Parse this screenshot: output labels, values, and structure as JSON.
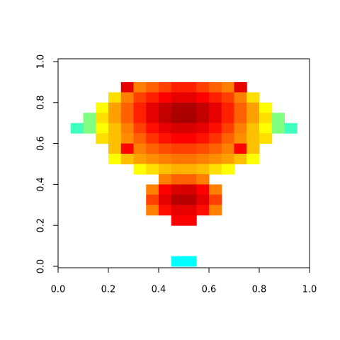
{
  "chart_data": {
    "type": "heatmap",
    "colors": [
      "#0000ff",
      "#00ffff",
      "#ffff00",
      "#ff8000",
      "#ff0000",
      "#a00000"
    ],
    "xlim": [
      0,
      1
    ],
    "ylim": [
      0,
      1
    ],
    "xticks": [
      {
        "value": 0,
        "label": "0.0"
      },
      0.2,
      0.4,
      0.6,
      0.8,
      {
        "value": 1,
        "label": "1.0"
      }
    ],
    "yticks": [
      {
        "value": 0,
        "label": "0.0"
      },
      0.2,
      0.4,
      0.6,
      0.8,
      {
        "value": 1,
        "label": "1.0"
      }
    ],
    "z": [
      [
        null,
        null,
        null,
        null,
        null,
        null,
        null,
        null,
        null,
        null,
        null,
        null,
        null,
        null,
        null,
        null,
        null,
        null,
        null,
        null
      ],
      [
        null,
        null,
        null,
        null,
        null,
        null,
        null,
        null,
        null,
        null,
        null,
        null,
        null,
        null,
        null,
        null,
        null,
        null,
        null,
        null
      ],
      [
        null,
        null,
        null,
        null,
        null,
        0.85,
        0.6,
        0.65,
        0.7,
        0.75,
        0.75,
        0.7,
        0.65,
        0.6,
        0.85,
        null,
        null,
        null,
        null,
        null
      ],
      [
        null,
        null,
        null,
        null,
        0.45,
        0.6,
        0.7,
        0.75,
        0.8,
        0.85,
        0.85,
        0.8,
        0.75,
        0.7,
        0.6,
        0.45,
        null,
        null,
        null,
        null
      ],
      [
        null,
        null,
        null,
        0.4,
        0.55,
        0.65,
        0.75,
        0.85,
        0.92,
        0.97,
        0.97,
        0.92,
        0.85,
        0.75,
        0.65,
        0.55,
        0.4,
        null,
        null,
        null
      ],
      [
        null,
        null,
        0.3,
        0.45,
        0.55,
        0.65,
        0.75,
        0.85,
        0.93,
        0.98,
        0.98,
        0.93,
        0.85,
        0.75,
        0.65,
        0.55,
        0.45,
        0.3,
        null,
        null
      ],
      [
        null,
        0.25,
        0.3,
        0.4,
        0.5,
        0.6,
        0.7,
        0.78,
        0.85,
        0.88,
        0.88,
        0.85,
        0.78,
        0.7,
        0.6,
        0.5,
        0.4,
        0.3,
        0.25,
        null
      ],
      [
        null,
        null,
        null,
        0.45,
        0.5,
        0.58,
        0.65,
        0.72,
        0.77,
        0.8,
        0.8,
        0.77,
        0.72,
        0.65,
        0.58,
        0.5,
        0.45,
        null,
        null,
        null
      ],
      [
        null,
        null,
        null,
        null,
        0.5,
        0.8,
        0.6,
        0.65,
        0.68,
        0.7,
        0.7,
        0.68,
        0.65,
        0.6,
        0.8,
        0.5,
        null,
        null,
        null,
        null
      ],
      [
        null,
        null,
        null,
        null,
        0.4,
        0.5,
        0.55,
        0.58,
        0.6,
        0.62,
        0.62,
        0.6,
        0.58,
        0.55,
        0.5,
        0.4,
        null,
        null,
        null,
        null
      ],
      [
        null,
        null,
        null,
        null,
        null,
        null,
        0.4,
        0.45,
        0.5,
        0.52,
        0.52,
        0.5,
        0.45,
        0.4,
        null,
        null,
        null,
        null,
        null,
        null
      ],
      [
        null,
        null,
        null,
        null,
        null,
        null,
        null,
        null,
        0.6,
        0.65,
        0.65,
        0.6,
        null,
        null,
        null,
        null,
        null,
        null,
        null,
        null
      ],
      [
        null,
        null,
        null,
        null,
        null,
        null,
        null,
        0.6,
        0.8,
        0.88,
        0.88,
        0.8,
        0.6,
        null,
        null,
        null,
        null,
        null,
        null,
        null
      ],
      [
        null,
        null,
        null,
        null,
        null,
        null,
        null,
        0.7,
        0.85,
        0.95,
        0.95,
        0.85,
        0.7,
        null,
        null,
        null,
        null,
        null,
        null,
        null
      ],
      [
        null,
        null,
        null,
        null,
        null,
        null,
        null,
        0.6,
        0.78,
        0.85,
        0.85,
        0.78,
        0.6,
        null,
        null,
        null,
        null,
        null,
        null,
        null
      ],
      [
        null,
        null,
        null,
        null,
        null,
        null,
        null,
        null,
        null,
        0.8,
        0.8,
        null,
        null,
        null,
        null,
        null,
        null,
        null,
        null,
        null
      ],
      [
        null,
        null,
        null,
        null,
        null,
        null,
        null,
        null,
        null,
        null,
        null,
        null,
        null,
        null,
        null,
        null,
        null,
        null,
        null,
        null
      ],
      [
        null,
        null,
        null,
        null,
        null,
        null,
        null,
        null,
        null,
        null,
        null,
        null,
        null,
        null,
        null,
        null,
        null,
        null,
        null,
        null
      ],
      [
        null,
        null,
        null,
        null,
        null,
        null,
        null,
        null,
        null,
        null,
        null,
        null,
        null,
        null,
        null,
        null,
        null,
        null,
        null,
        null
      ],
      [
        null,
        null,
        null,
        null,
        null,
        null,
        null,
        null,
        null,
        0.2,
        0.2,
        null,
        null,
        null,
        null,
        null,
        null,
        null,
        null,
        null
      ]
    ]
  }
}
